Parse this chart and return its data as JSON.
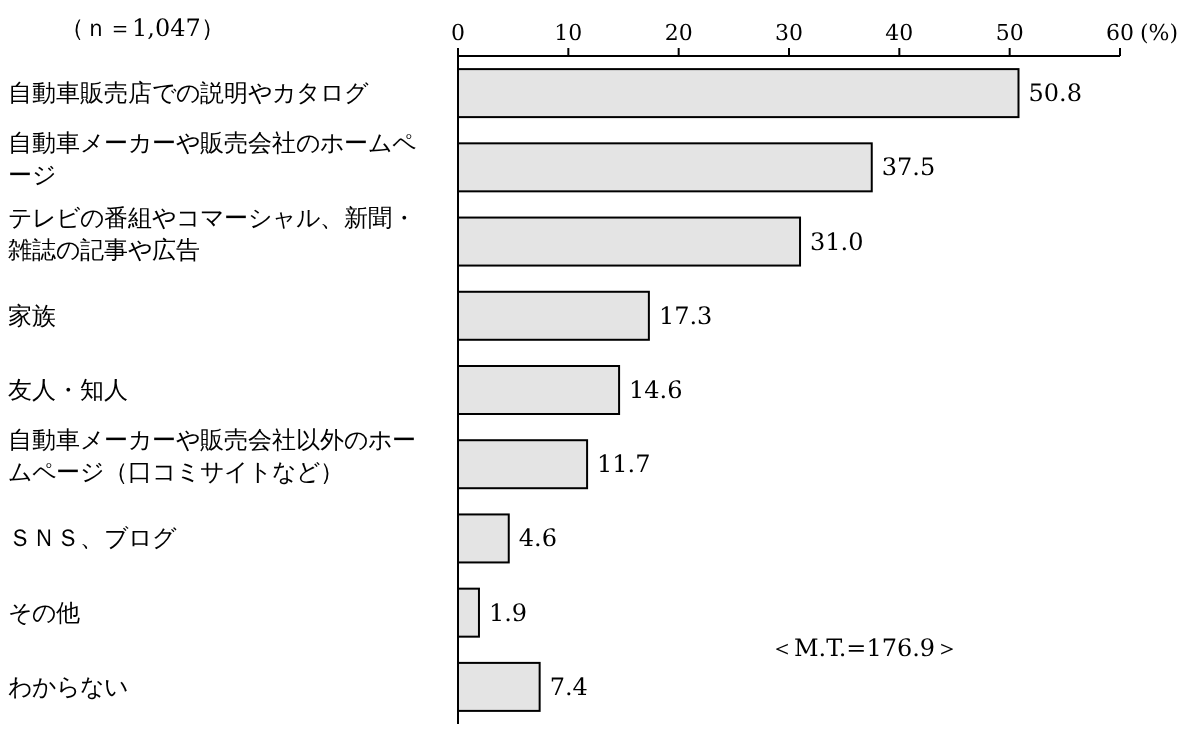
{
  "chart_data": {
    "type": "bar",
    "orientation": "horizontal",
    "xlabel": "(%)",
    "categories": [
      "自動車販売店での説明やカタログ",
      "自動車メーカーや販売会社のホームページ",
      "テレビの番組やコマーシャル、新聞・雑誌の記事や広告",
      "家族",
      "友人・知人",
      "自動車メーカーや販売会社以外のホームページ（口コミサイトなど）",
      "ＳＮＳ、ブログ",
      "その他",
      "わからない"
    ],
    "values": [
      50.8,
      37.5,
      31.0,
      17.3,
      14.6,
      11.7,
      4.6,
      1.9,
      7.4
    ],
    "color": "#e4e4e4",
    "xlim": [
      0,
      60
    ],
    "xticks": [
      0,
      10,
      20,
      30,
      40,
      50,
      60
    ],
    "value_labels": [
      "50.8",
      "37.5",
      "31.0",
      "17.3",
      "14.6",
      "11.7",
      "4.6",
      "1.9",
      "7.4"
    ],
    "grid": false,
    "annotations": [
      "（ｎ＝1,047）",
      "＜M.T.=176.9＞"
    ]
  }
}
